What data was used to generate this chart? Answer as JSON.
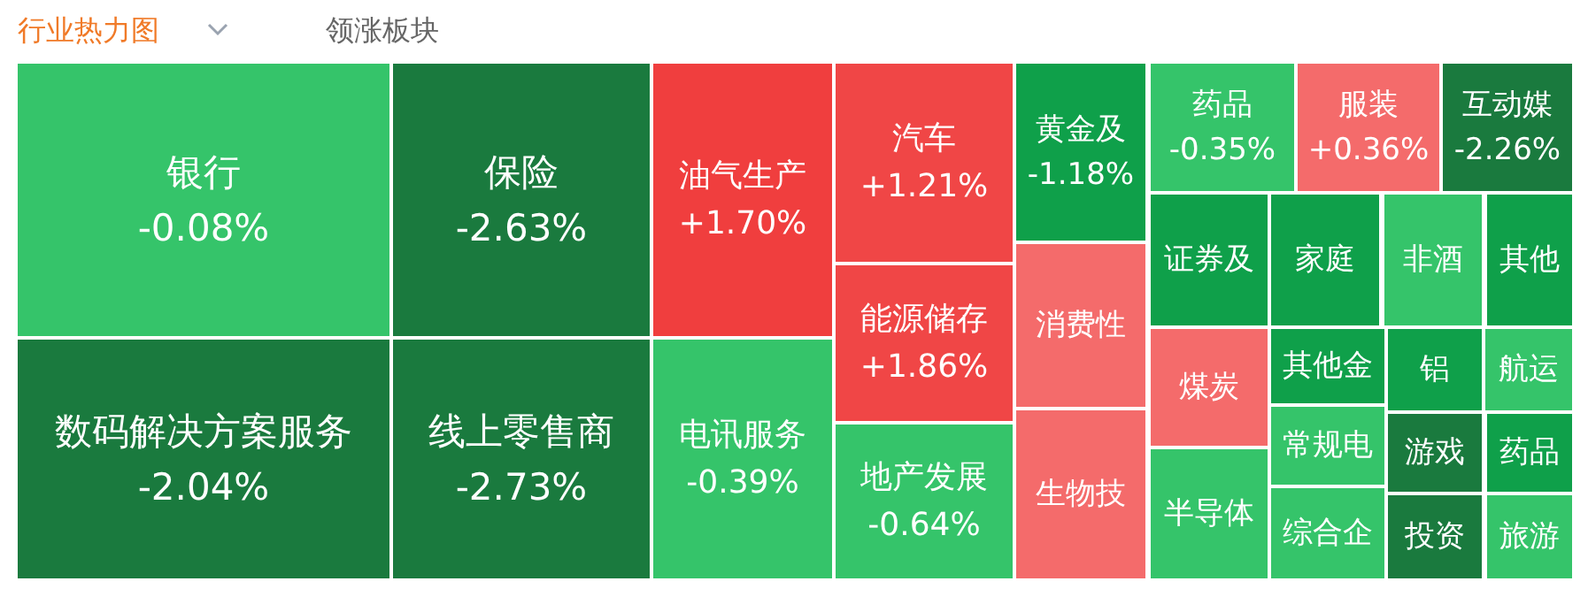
{
  "chart_data": {
    "type": "other",
    "title": "行业热力图",
    "annotations": [
      "领涨板块"
    ],
    "categories": [
      "银行",
      "保险",
      "数码解决方案服务",
      "线上零售商",
      "油气生产",
      "电讯服务",
      "汽车",
      "能源储存",
      "地产发展",
      "黄金及",
      "消费性",
      "生物技",
      "药品",
      "服装",
      "互动媒",
      "证券及",
      "家庭",
      "非酒",
      "其他",
      "煤炭",
      "半导体",
      "其他金",
      "常规电",
      "综合企",
      "铝",
      "航运",
      "游戏",
      "药品",
      "投资",
      "旅游"
    ],
    "values": [
      -0.08,
      -2.63,
      -2.04,
      -2.73,
      1.7,
      -0.39,
      1.21,
      1.86,
      -0.64,
      -1.18,
      null,
      null,
      -0.35,
      0.36,
      -2.26,
      null,
      null,
      null,
      null,
      null,
      null,
      null,
      null,
      null,
      null,
      null,
      null,
      null,
      null,
      null
    ],
    "value_labels": [
      "-0.08%",
      "-2.63%",
      "-2.04%",
      "-2.73%",
      "+1.70%",
      "-0.39%",
      "+1.21%",
      "+1.86%",
      "-0.64%",
      "-1.18%",
      null,
      null,
      "-0.35%",
      "+0.36%",
      "-2.26%",
      null,
      null,
      null,
      null,
      null,
      null,
      null,
      null,
      null,
      null,
      null,
      null,
      null,
      null,
      null
    ],
    "colors": [
      "#35c46a",
      "#1a7a3e",
      "#1a7a3e",
      "#1a7a3e",
      "#f03e3e",
      "#35c46a",
      "#f04646",
      "#f04646",
      "#35c46a",
      "#0fa04a",
      "#f46b6b",
      "#f46b6b",
      "#35c46a",
      "#f46b6b",
      "#1a7a3e",
      "#0fa04a",
      "#0fa04a",
      "#35c46a",
      "#0fa04a",
      "#f46b6b",
      "#35c46a",
      "#0fa04a",
      "#35c46a",
      "#35c46a",
      "#0fa04a",
      "#35c46a",
      "#1a7a3e",
      "#0fa04a",
      "#1a7a3e",
      "#35c46a"
    ]
  }
}
